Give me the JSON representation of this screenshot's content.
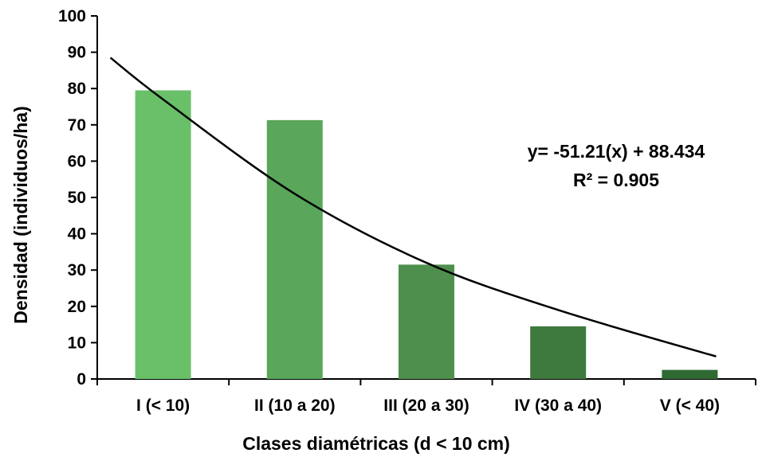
{
  "chart_data": {
    "type": "bar",
    "categories": [
      "I (< 10)",
      "II (10 a 20)",
      "III (20 a 30)",
      "IV (30 a 40)",
      "V (< 40)"
    ],
    "values": [
      79.5,
      71.3,
      31.5,
      14.5,
      2.5
    ],
    "xlabel": "Clases diamétricas (d < 10 cm)",
    "ylabel": "Densidad (individuos/ha)",
    "ylim": [
      0,
      100
    ],
    "yticks": [
      0,
      10,
      20,
      30,
      40,
      50,
      60,
      70,
      80,
      90,
      100
    ],
    "bar_colors": [
      "#6abf69",
      "#5aa65a",
      "#4e8f4e",
      "#3e7a3e",
      "#2f6a33"
    ],
    "trendline": {
      "type": "curve",
      "x": [
        0.6,
        1,
        2,
        3,
        4,
        5.2
      ],
      "y": [
        88.5,
        77,
        51,
        32,
        19,
        6.2
      ],
      "equation": "y= -51.21(x) + 88.434",
      "r_squared": "R² = 0.905"
    },
    "grid": false,
    "legend": "none"
  }
}
